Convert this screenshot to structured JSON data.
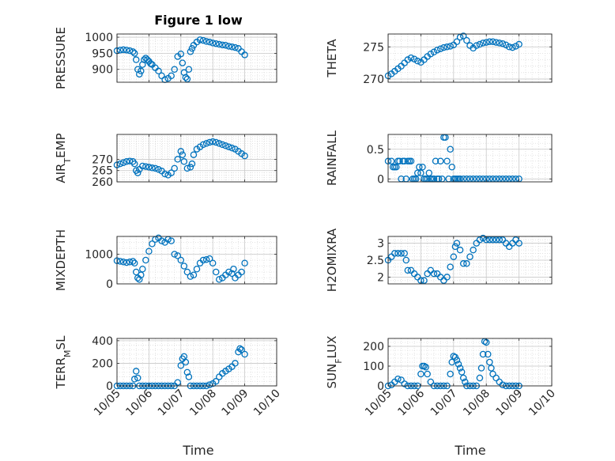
{
  "figure": {
    "title": "Figure 1 low",
    "xlabel": "Time",
    "x_ticks": [
      "10/05",
      "10/06",
      "10/07",
      "10/08",
      "10/09",
      "10/10"
    ],
    "marker_color": "#0072BD",
    "grid_color": "#dcdcdc"
  },
  "chart_data": [
    {
      "type": "scatter",
      "ylabel": "PRESSURE",
      "ylim": [
        860,
        1010
      ],
      "yticks": [
        900,
        950,
        1000
      ],
      "x": [
        0.0,
        0.1,
        0.2,
        0.3,
        0.4,
        0.5,
        0.55,
        0.6,
        0.65,
        0.7,
        0.75,
        0.8,
        0.85,
        0.9,
        0.95,
        1.0,
        1.05,
        1.1,
        1.2,
        1.3,
        1.4,
        1.5,
        1.6,
        1.7,
        1.8,
        1.9,
        2.0,
        2.05,
        2.1,
        2.15,
        2.2,
        2.25,
        2.3,
        2.35,
        2.4,
        2.5,
        2.6,
        2.7,
        2.8,
        2.9,
        3.0,
        3.1,
        3.2,
        3.3,
        3.4,
        3.5,
        3.6,
        3.7,
        3.8,
        3.9,
        4.0
      ],
      "y": [
        958,
        960,
        961,
        960,
        958,
        955,
        950,
        930,
        900,
        885,
        895,
        915,
        930,
        935,
        930,
        925,
        918,
        915,
        905,
        895,
        880,
        868,
        872,
        880,
        900,
        940,
        948,
        920,
        890,
        875,
        870,
        900,
        955,
        965,
        975,
        985,
        992,
        990,
        987,
        985,
        982,
        980,
        978,
        976,
        975,
        972,
        970,
        968,
        965,
        955,
        945
      ],
      "series": [
        {
          "name": ""
        }
      ]
    },
    {
      "type": "scatter",
      "ylabel": "THETA",
      "ylim": [
        269.5,
        277
      ],
      "yticks": [
        270,
        275
      ],
      "x": [
        0.0,
        0.1,
        0.2,
        0.3,
        0.4,
        0.5,
        0.6,
        0.7,
        0.8,
        0.9,
        1.0,
        1.1,
        1.2,
        1.3,
        1.4,
        1.5,
        1.6,
        1.7,
        1.8,
        1.9,
        2.0,
        2.1,
        2.2,
        2.3,
        2.4,
        2.5,
        2.6,
        2.7,
        2.8,
        2.9,
        3.0,
        3.1,
        3.2,
        3.3,
        3.4,
        3.5,
        3.6,
        3.7,
        3.8,
        3.9,
        4.0
      ],
      "y": [
        270.5,
        270.8,
        271.2,
        271.6,
        272.0,
        272.5,
        273.0,
        273.3,
        273.1,
        272.8,
        272.6,
        273.0,
        273.5,
        273.9,
        274.2,
        274.5,
        274.7,
        274.9,
        275.0,
        275.1,
        275.3,
        275.8,
        276.5,
        276.7,
        276.0,
        275.2,
        274.8,
        275.2,
        275.4,
        275.6,
        275.7,
        275.8,
        275.8,
        275.7,
        275.6,
        275.5,
        275.3,
        275.0,
        274.9,
        275.1,
        275.4
      ],
      "series": [
        {
          "name": ""
        }
      ]
    },
    {
      "type": "scatter",
      "ylabel": "AIR_TEMP",
      "ylim": [
        260,
        281
      ],
      "yticks": [
        260,
        265,
        270
      ],
      "x": [
        0.0,
        0.1,
        0.2,
        0.3,
        0.4,
        0.5,
        0.55,
        0.6,
        0.65,
        0.7,
        0.8,
        0.9,
        1.0,
        1.1,
        1.2,
        1.3,
        1.4,
        1.5,
        1.6,
        1.7,
        1.8,
        1.9,
        2.0,
        2.05,
        2.1,
        2.2,
        2.3,
        2.35,
        2.4,
        2.5,
        2.6,
        2.7,
        2.8,
        2.9,
        3.0,
        3.1,
        3.2,
        3.3,
        3.4,
        3.5,
        3.6,
        3.7,
        3.8,
        3.9,
        4.0
      ],
      "y": [
        267.5,
        268.0,
        268.5,
        269.0,
        269.2,
        269.0,
        268.0,
        265.0,
        264.0,
        265.5,
        267.0,
        266.8,
        266.5,
        266.2,
        266.0,
        265.5,
        264.8,
        263.5,
        263.0,
        264.0,
        266.0,
        270.0,
        273.5,
        272.0,
        269.0,
        266.0,
        266.5,
        268.0,
        272.0,
        274.5,
        275.5,
        276.5,
        277.0,
        277.5,
        277.8,
        277.5,
        277.0,
        276.5,
        276.0,
        275.5,
        275.0,
        274.5,
        273.5,
        272.5,
        271.5
      ],
      "series": [
        {
          "name": ""
        }
      ]
    },
    {
      "type": "scatter",
      "ylabel": "RAINFALL",
      "ylim": [
        -0.05,
        0.75
      ],
      "yticks": [
        0,
        0.5
      ],
      "x": [
        0.0,
        0.1,
        0.15,
        0.2,
        0.25,
        0.3,
        0.35,
        0.4,
        0.45,
        0.5,
        0.55,
        0.6,
        0.65,
        0.7,
        0.75,
        0.8,
        0.85,
        0.9,
        0.95,
        1.0,
        1.05,
        1.1,
        1.15,
        1.2,
        1.25,
        1.3,
        1.35,
        1.4,
        1.45,
        1.5,
        1.55,
        1.6,
        1.65,
        1.7,
        1.75,
        1.8,
        1.85,
        1.9,
        1.95,
        2.0,
        2.05,
        2.1,
        2.15,
        2.2,
        2.3,
        2.4,
        2.5,
        2.6,
        2.7,
        2.8,
        2.9,
        3.0,
        3.1,
        3.2,
        3.3,
        3.4,
        3.5,
        3.6,
        3.7,
        3.8,
        3.9,
        4.0
      ],
      "y": [
        0.3,
        0.3,
        0.2,
        0.2,
        0.2,
        0.3,
        0.3,
        0.0,
        0.3,
        0.3,
        0.0,
        0.3,
        0.3,
        0.3,
        0.0,
        0.0,
        0.0,
        0.1,
        0.2,
        0.1,
        0.2,
        0.0,
        0.0,
        0.0,
        0.1,
        0.0,
        0.0,
        0.0,
        0.3,
        0.0,
        0.0,
        0.3,
        0.0,
        0.7,
        0.7,
        0.3,
        0.0,
        0.5,
        0.2,
        0.0,
        0.0,
        0.0,
        0.0,
        0.0,
        0.0,
        0.0,
        0.0,
        0.0,
        0.0,
        0.0,
        0.0,
        0.0,
        0.0,
        0.0,
        0.0,
        0.0,
        0.0,
        0.0,
        0.0,
        0.0,
        0.0,
        0.0
      ],
      "series": [
        {
          "name": ""
        }
      ]
    },
    {
      "type": "scatter",
      "ylabel": "MIXDEPTH",
      "ylim": [
        0,
        1600
      ],
      "yticks": [
        0,
        1000
      ],
      "x": [
        0.0,
        0.1,
        0.2,
        0.3,
        0.4,
        0.5,
        0.55,
        0.6,
        0.65,
        0.7,
        0.75,
        0.8,
        0.9,
        1.0,
        1.1,
        1.2,
        1.3,
        1.4,
        1.5,
        1.6,
        1.7,
        1.8,
        1.9,
        2.0,
        2.1,
        2.2,
        2.3,
        2.4,
        2.5,
        2.6,
        2.7,
        2.8,
        2.9,
        3.0,
        3.1,
        3.2,
        3.3,
        3.4,
        3.5,
        3.6,
        3.65,
        3.7,
        3.8,
        3.9,
        4.0
      ],
      "y": [
        780,
        760,
        740,
        720,
        740,
        760,
        700,
        400,
        200,
        150,
        300,
        500,
        800,
        1100,
        1350,
        1500,
        1550,
        1450,
        1400,
        1500,
        1450,
        1000,
        950,
        800,
        600,
        400,
        250,
        300,
        500,
        700,
        800,
        820,
        850,
        700,
        400,
        150,
        200,
        300,
        400,
        350,
        500,
        200,
        300,
        400,
        700
      ],
      "series": [
        {
          "name": ""
        }
      ]
    },
    {
      "type": "scatter",
      "ylabel": "H2OMIXRA",
      "ylim": [
        1.8,
        3.2
      ],
      "yticks": [
        2,
        2.5,
        3
      ],
      "x": [
        0.0,
        0.1,
        0.2,
        0.3,
        0.4,
        0.5,
        0.55,
        0.6,
        0.7,
        0.8,
        0.9,
        1.0,
        1.1,
        1.2,
        1.3,
        1.4,
        1.5,
        1.6,
        1.7,
        1.8,
        1.9,
        2.0,
        2.05,
        2.1,
        2.2,
        2.3,
        2.4,
        2.5,
        2.6,
        2.7,
        2.8,
        2.9,
        3.0,
        3.1,
        3.2,
        3.3,
        3.4,
        3.5,
        3.6,
        3.7,
        3.8,
        3.9,
        4.0
      ],
      "y": [
        2.5,
        2.6,
        2.7,
        2.7,
        2.7,
        2.7,
        2.5,
        2.2,
        2.2,
        2.1,
        2.0,
        1.9,
        1.9,
        2.1,
        2.2,
        2.1,
        2.1,
        2.0,
        1.9,
        2.0,
        2.3,
        2.6,
        2.9,
        3.0,
        2.8,
        2.4,
        2.4,
        2.6,
        2.8,
        3.0,
        3.1,
        3.15,
        3.1,
        3.1,
        3.1,
        3.1,
        3.1,
        3.1,
        3.0,
        2.9,
        3.0,
        3.1,
        3.0
      ],
      "series": [
        {
          "name": ""
        }
      ]
    },
    {
      "type": "scatter",
      "ylabel": "TERR_MSL",
      "ylim": [
        0,
        420
      ],
      "yticks": [
        0,
        200,
        400
      ],
      "x": [
        0.0,
        0.1,
        0.2,
        0.3,
        0.4,
        0.5,
        0.55,
        0.6,
        0.65,
        0.7,
        0.8,
        0.9,
        1.0,
        1.1,
        1.2,
        1.3,
        1.4,
        1.5,
        1.6,
        1.7,
        1.8,
        1.9,
        2.0,
        2.05,
        2.1,
        2.15,
        2.2,
        2.25,
        2.3,
        2.4,
        2.5,
        2.6,
        2.7,
        2.8,
        2.9,
        3.0,
        3.1,
        3.2,
        3.3,
        3.4,
        3.5,
        3.6,
        3.7,
        3.8,
        3.85,
        3.9,
        4.0
      ],
      "y": [
        0,
        0,
        0,
        0,
        0,
        0,
        60,
        130,
        70,
        0,
        0,
        0,
        0,
        0,
        0,
        0,
        0,
        0,
        0,
        0,
        0,
        30,
        180,
        240,
        260,
        210,
        120,
        80,
        0,
        0,
        0,
        0,
        0,
        0,
        10,
        20,
        40,
        80,
        110,
        130,
        150,
        170,
        200,
        300,
        330,
        320,
        280
      ],
      "series": [
        {
          "name": ""
        }
      ]
    },
    {
      "type": "scatter",
      "ylabel": "SUN_FLUX",
      "ylim": [
        0,
        240
      ],
      "yticks": [
        0,
        100,
        200
      ],
      "x": [
        0.0,
        0.1,
        0.2,
        0.3,
        0.4,
        0.5,
        0.6,
        0.7,
        0.8,
        0.9,
        1.0,
        1.05,
        1.1,
        1.15,
        1.2,
        1.3,
        1.4,
        1.5,
        1.6,
        1.7,
        1.8,
        1.9,
        1.95,
        2.0,
        2.05,
        2.1,
        2.15,
        2.2,
        2.25,
        2.3,
        2.35,
        2.4,
        2.5,
        2.6,
        2.7,
        2.8,
        2.85,
        2.9,
        2.95,
        3.0,
        3.05,
        3.1,
        3.15,
        3.2,
        3.3,
        3.4,
        3.5,
        3.6,
        3.7,
        3.8,
        3.9,
        4.0
      ],
      "y": [
        0,
        5,
        20,
        35,
        30,
        10,
        0,
        0,
        0,
        0,
        60,
        100,
        100,
        95,
        60,
        20,
        0,
        0,
        0,
        0,
        0,
        60,
        120,
        150,
        145,
        130,
        110,
        90,
        70,
        40,
        20,
        0,
        0,
        0,
        0,
        40,
        90,
        160,
        225,
        220,
        160,
        120,
        90,
        60,
        40,
        20,
        5,
        0,
        0,
        0,
        0,
        0
      ],
      "series": [
        {
          "name": ""
        }
      ]
    }
  ]
}
